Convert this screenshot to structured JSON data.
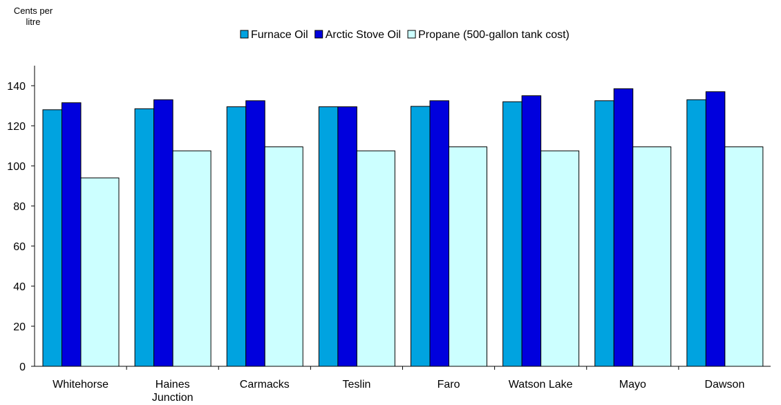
{
  "chart_data": {
    "type": "bar",
    "title": "",
    "xlabel": "",
    "ylabel_lines": [
      "Cents per",
      "litre"
    ],
    "ylim": [
      0,
      150
    ],
    "yticks": [
      0,
      20,
      40,
      60,
      80,
      100,
      120,
      140
    ],
    "grid": false,
    "legend_position": "top-center",
    "categories": [
      [
        "Whitehorse"
      ],
      [
        "Haines",
        "Junction"
      ],
      [
        "Carmacks"
      ],
      [
        "Teslin"
      ],
      [
        "Faro"
      ],
      [
        "Watson Lake"
      ],
      [
        "Mayo"
      ],
      [
        "Dawson"
      ]
    ],
    "series": [
      {
        "name": "Furnace Oil",
        "color": "#00a3e0",
        "values": [
          128,
          128.5,
          129.5,
          129.5,
          129.7,
          132,
          132.5,
          133
        ]
      },
      {
        "name": "Arctic Stove Oil",
        "color": "#0000dd",
        "values": [
          131.5,
          133,
          132.5,
          129.5,
          132.5,
          135,
          138.5,
          137
        ]
      },
      {
        "name": "Propane (500-gallon tank cost)",
        "color": "#ccffff",
        "values": [
          94,
          107.5,
          109.5,
          107.5,
          109.5,
          107.5,
          109.5,
          109.5
        ]
      }
    ]
  }
}
